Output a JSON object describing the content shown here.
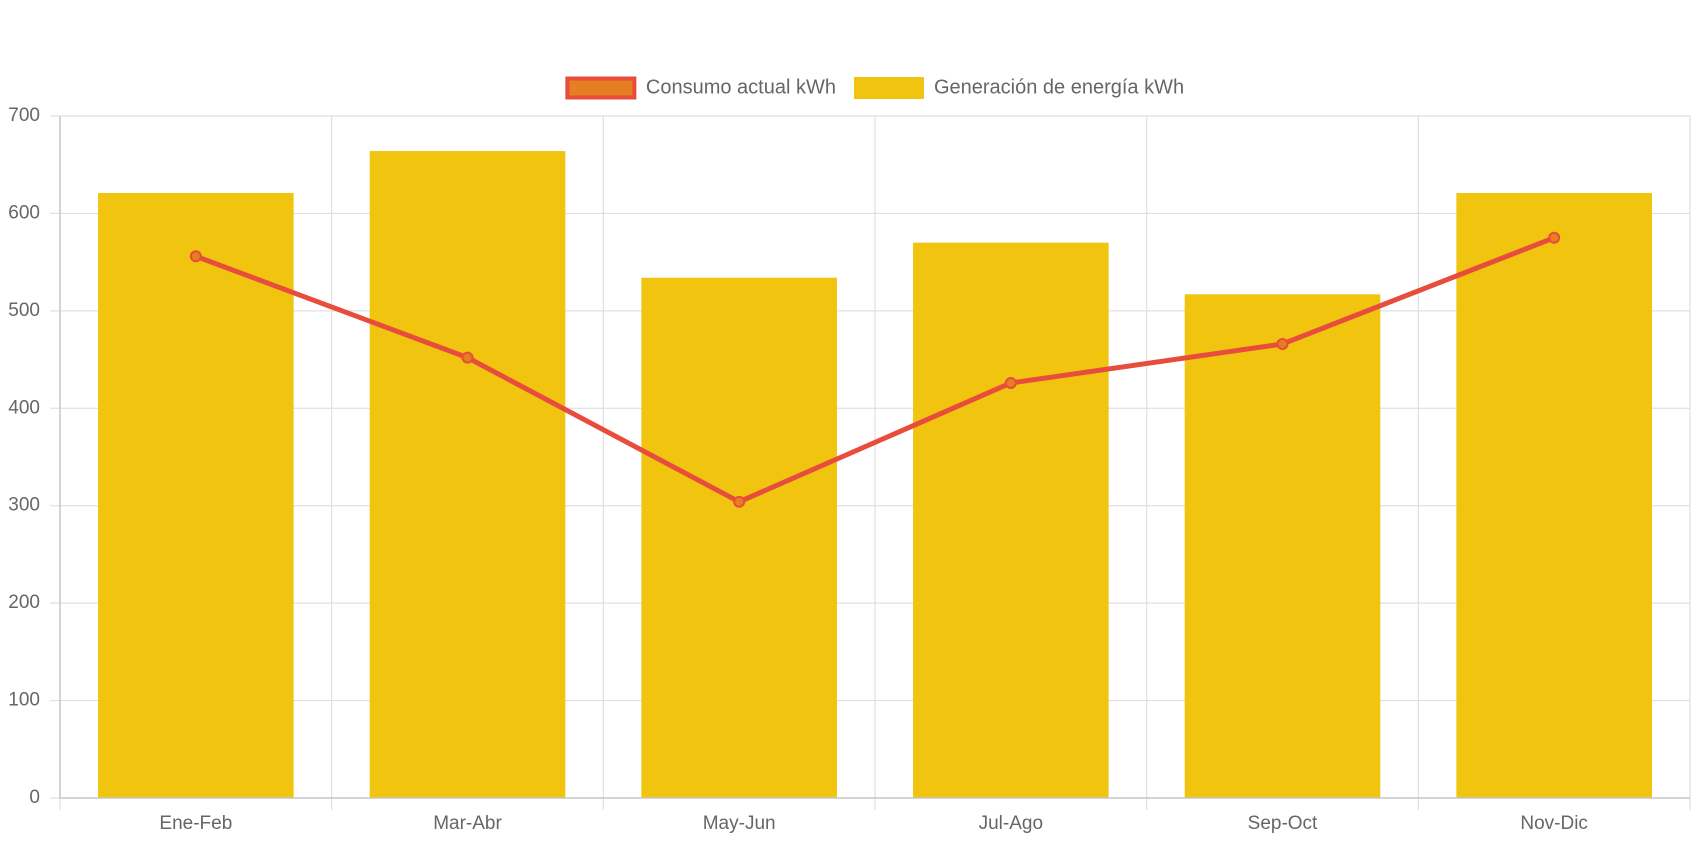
{
  "chart_data": {
    "type": "bar",
    "categories": [
      "Ene-Feb",
      "Mar-Abr",
      "May-Jun",
      "Jul-Ago",
      "Sep-Oct",
      "Nov-Dic"
    ],
    "series": [
      {
        "name": "Generación de energía kWh",
        "type": "bar",
        "values": [
          621,
          664,
          534,
          570,
          517,
          621
        ],
        "color": "#f1c40f"
      },
      {
        "name": "Consumo actual kWh",
        "type": "line",
        "values": [
          556,
          452,
          304,
          426,
          466,
          575
        ],
        "color": "#e74c3c",
        "point_fill": "#e67e22"
      }
    ],
    "legend_order": [
      1,
      0
    ],
    "ylim": [
      0,
      700
    ],
    "yticks": [
      0,
      100,
      200,
      300,
      400,
      500,
      600,
      700
    ],
    "title": "",
    "xlabel": "",
    "ylabel": "",
    "grid": true,
    "legend_position": "top",
    "grid_color": "#e0e0e0",
    "text_color": "#666666"
  }
}
